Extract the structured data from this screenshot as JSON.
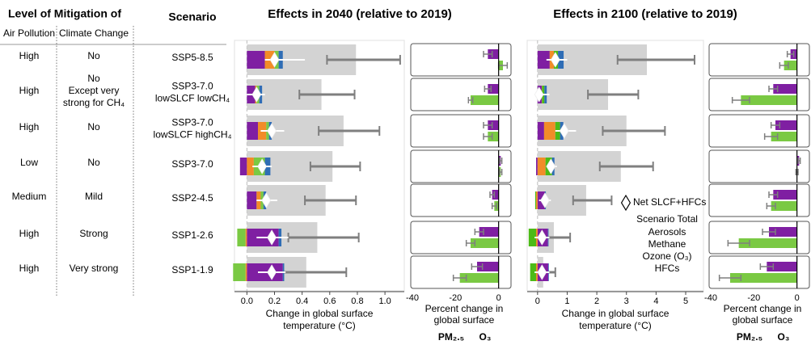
{
  "table": {
    "header": {
      "group": "Level of Mitigation of",
      "air_pollution": "Air Pollution",
      "climate_change": "Climate Change",
      "scenario": "Scenario"
    },
    "rows": [
      {
        "air_pollution": {
          "text": "High",
          "color": "#1f3864"
        },
        "climate_change": {
          "lines": [
            "No"
          ],
          "colors": [
            "#00b0f0"
          ]
        }
      },
      {
        "air_pollution": {
          "text": "High",
          "color": "#1f3864"
        },
        "climate_change": {
          "lines": [
            "No",
            "Except very",
            "strong for CH₄"
          ],
          "colors": [
            "#00b0f0",
            "#1f3864",
            "#1f3864"
          ]
        }
      },
      {
        "air_pollution": {
          "text": "High",
          "color": "#1f3864"
        },
        "climate_change": {
          "lines": [
            "No"
          ],
          "colors": [
            "#00b0f0"
          ]
        }
      },
      {
        "air_pollution": {
          "text": "Low",
          "color": "#2aa0d8"
        },
        "climate_change": {
          "lines": [
            "No"
          ],
          "colors": [
            "#00b0f0"
          ]
        }
      },
      {
        "air_pollution": {
          "text": "Medium",
          "color": "#2e75b6"
        },
        "climate_change": {
          "lines": [
            "Mild"
          ],
          "colors": [
            "#2e75b6"
          ]
        }
      },
      {
        "air_pollution": {
          "text": "High",
          "color": "#1f3864"
        },
        "climate_change": {
          "lines": [
            "Strong"
          ],
          "colors": [
            "#1f4e79"
          ]
        }
      },
      {
        "air_pollution": {
          "text": "High",
          "color": "#1f3864"
        },
        "climate_change": {
          "lines": [
            "Very strong"
          ],
          "colors": [
            "#1f3864"
          ]
        }
      }
    ]
  },
  "chart_data": [
    {
      "type": "bar",
      "orientation": "horizontal",
      "stacked": true,
      "title": "Effects in 2040 (relative to 2019)",
      "categories": [
        [
          "SSP5-8.5"
        ],
        [
          "SSP3-7.0",
          "lowSLCF lowCH₄"
        ],
        [
          "SSP3-7.0",
          "lowSLCF highCH₄"
        ],
        [
          "SSP3-7.0"
        ],
        [
          "SSP2-4.5"
        ],
        [
          "SSP1-2.6"
        ],
        [
          "SSP1-1.9"
        ]
      ],
      "category_colors": [
        "#000000",
        "#c55a11",
        "#c55a11",
        "#000000",
        "#000000",
        "#000000",
        "#000000"
      ],
      "xlabel": [
        "Change in global surface",
        "temperature (°C)"
      ],
      "xlim": [
        -0.09,
        1.14
      ],
      "xticks": [
        {
          "value": 0,
          "label": "0.0"
        },
        0.2,
        0.4,
        0.6,
        0.8,
        {
          "value": 1,
          "label": "1.0"
        }
      ],
      "zeroline": true,
      "total": {
        "color": "#d3d3d3",
        "error_color": "#7f7f7f",
        "values": [
          0.79,
          0.54,
          0.7,
          0.62,
          0.57,
          0.51,
          0.43
        ],
        "error_low": [
          0.58,
          0.38,
          0.52,
          0.46,
          0.42,
          0.3,
          0.25
        ],
        "error_high": [
          1.11,
          0.78,
          0.96,
          0.82,
          0.79,
          0.81,
          0.72
        ]
      },
      "series": [
        {
          "color": "#7f1fa2",
          "values": [
            0.13,
            0.06,
            0.08,
            -0.05,
            0.07,
            0.23,
            0.26
          ]
        },
        {
          "color": "#f28c28",
          "values": [
            0.07,
            0.01,
            0.06,
            0.05,
            0.03,
            -0.01,
            -0.01
          ]
        },
        {
          "color": "#7ac943",
          "values": [
            0.03,
            0.02,
            0.02,
            0.08,
            0.02,
            -0.06,
            -0.09
          ]
        },
        {
          "color": "#2f6db5",
          "values": [
            0.03,
            0.02,
            0.02,
            0.04,
            0.02,
            0.02,
            0.01
          ]
        }
      ],
      "net": {
        "color": "#ffffff",
        "values": [
          0.2,
          0.07,
          0.18,
          0.11,
          0.14,
          0.18,
          0.18
        ],
        "error_low": [
          0.13,
          0,
          0.1,
          0.04,
          0.07,
          0.07,
          0.08
        ],
        "error_high": [
          0.42,
          0.13,
          0.27,
          0.18,
          0.22,
          0.3,
          0.28
        ]
      }
    },
    {
      "type": "bar",
      "orientation": "horizontal",
      "xlabel": [
        "Percent change in",
        "global surface"
      ],
      "xlim": [
        -40,
        5
      ],
      "xticks": [
        -40,
        -20,
        0
      ],
      "error_color": "#7f7f7f",
      "series": [
        {
          "name": "PM₂.₅",
          "color": "#7f1fa2",
          "values": [
            -5,
            -5,
            -5,
            1,
            -3,
            -9,
            -10
          ],
          "errors": [
            2,
            1.5,
            2,
            0.5,
            1,
            2,
            2.5
          ]
        },
        {
          "name": "O₃",
          "color": "#7ac943",
          "values": [
            2,
            -13,
            -5,
            1,
            -2,
            -13,
            -18
          ],
          "errors": [
            2,
            1,
            2,
            0.5,
            1,
            2,
            3
          ]
        }
      ]
    },
    {
      "type": "bar",
      "orientation": "horizontal",
      "stacked": true,
      "title": "Effects in 2100 (relative to 2019)",
      "xlabel": [
        "Change in global surface",
        "temperature (°C)"
      ],
      "xlim": [
        -0.35,
        5.6
      ],
      "xticks": [
        0,
        1,
        2,
        3,
        4,
        5
      ],
      "zeroline": true,
      "total": {
        "name": "Scenario Total",
        "color": "#d3d3d3",
        "text_color": "#808080",
        "error_color": "#7f7f7f",
        "values": [
          3.69,
          2.38,
          3.0,
          2.81,
          1.64,
          0.55,
          0.19
        ],
        "error_low": [
          2.7,
          1.7,
          2.2,
          2.1,
          1.2,
          0.2,
          -0.2
        ],
        "error_high": [
          5.3,
          3.4,
          4.3,
          3.9,
          2.5,
          1.1,
          0.6
        ]
      },
      "series": [
        {
          "name": "Aerosols",
          "color": "#7f1fa2",
          "values": [
            0.41,
            0.14,
            0.22,
            -0.05,
            0.25,
            0.35,
            0.36
          ]
        },
        {
          "name": "Methane",
          "color": "#f28c28",
          "values": [
            0.14,
            0.01,
            0.38,
            0.27,
            -0.05,
            -0.05,
            -0.05
          ]
        },
        {
          "name": "Ozone (O₃)",
          "color": "#4cbb17",
          "values": [
            0.14,
            0.08,
            0.16,
            0.22,
            -0.03,
            -0.25,
            -0.2
          ]
        },
        {
          "name": "HFCs",
          "color": "#2f6db5",
          "values": [
            0.19,
            0.08,
            0.11,
            0.08,
            0.03,
            0.02,
            0.02
          ]
        }
      ],
      "net": {
        "name": "Net SLCF+HFCs",
        "color": "#ffffff",
        "values": [
          0.6,
          0.05,
          0.9,
          0.45,
          0.25,
          0.15,
          0.15
        ],
        "error_low": [
          0.3,
          -0.1,
          0.6,
          0.3,
          0.05,
          -0.1,
          -0.1
        ],
        "error_high": [
          1.0,
          0.4,
          1.3,
          0.65,
          0.45,
          0.4,
          0.4
        ]
      }
    },
    {
      "type": "bar",
      "orientation": "horizontal",
      "xlabel": [
        "Percent change in",
        "global surface"
      ],
      "xlim": [
        -40,
        5
      ],
      "xticks": [
        -40,
        -20,
        0
      ],
      "error_color": "#7f7f7f",
      "series": [
        {
          "name": "PM₂.₅",
          "color": "#7f1fa2",
          "values": [
            -3,
            -11,
            -10,
            1,
            -11,
            -13,
            -14
          ],
          "errors": [
            1.5,
            2,
            2,
            0.5,
            2,
            3,
            3
          ]
        },
        {
          "name": "O₃",
          "color": "#7ac943",
          "values": [
            -6,
            -26,
            -12,
            0,
            -12,
            -27,
            -31
          ],
          "errors": [
            2,
            4,
            3,
            0.5,
            2,
            5,
            5
          ]
        }
      ]
    }
  ]
}
